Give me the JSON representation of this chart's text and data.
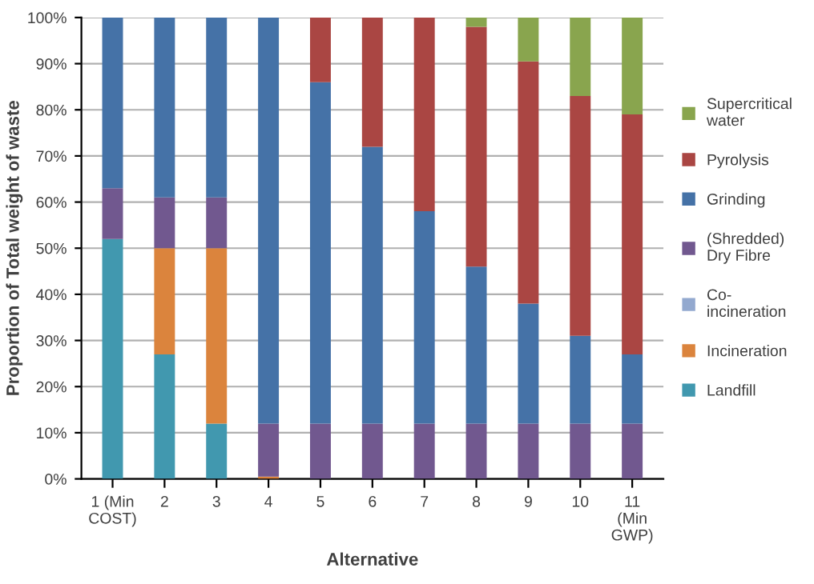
{
  "chart_data": {
    "type": "bar",
    "stacked": true,
    "xlabel": "Alternative",
    "ylabel": "Proportion of Total weight of waste",
    "categories": [
      "1 (Min\nCOST)",
      "2",
      "3",
      "4",
      "5",
      "6",
      "7",
      "8",
      "9",
      "10",
      "11\n(Min\nGWP)"
    ],
    "series": [
      {
        "name": "Landfill",
        "color": "#4198af",
        "values": [
          52,
          27,
          12,
          0,
          0,
          0,
          0,
          0,
          0,
          0,
          0
        ]
      },
      {
        "name": "Incineration",
        "color": "#db843d",
        "values": [
          0,
          23,
          38,
          0.5,
          0,
          0,
          0,
          0,
          0,
          0,
          0
        ]
      },
      {
        "name": "Co-\nincineration",
        "color": "#93a9cf",
        "values": [
          0,
          0,
          0,
          0,
          0,
          0,
          0,
          0,
          0,
          0,
          0
        ]
      },
      {
        "name": "(Shredded)\nDry Fibre",
        "color": "#71588f",
        "values": [
          11,
          11,
          11,
          11.5,
          12,
          12,
          12,
          12,
          12,
          12,
          12
        ]
      },
      {
        "name": "Grinding",
        "color": "#4572a7",
        "values": [
          37,
          39,
          39,
          88,
          74,
          60,
          46,
          34,
          26,
          19,
          15
        ]
      },
      {
        "name": "Pyrolysis",
        "color": "#aa4643",
        "values": [
          0,
          0,
          0,
          0,
          14,
          28,
          42,
          52,
          52.5,
          52,
          52
        ]
      },
      {
        "name": "Supercritical\nwater",
        "color": "#89a54e",
        "values": [
          0,
          0,
          0,
          0,
          0,
          0,
          0,
          2,
          9.5,
          17,
          21
        ]
      }
    ],
    "ylim": [
      0,
      100
    ],
    "yticks": [
      {
        "value": 0,
        "label": "0%"
      },
      {
        "value": 10,
        "label": "10%"
      },
      {
        "value": 20,
        "label": "20%"
      },
      {
        "value": 30,
        "label": "30%"
      },
      {
        "value": 40,
        "label": "40%"
      },
      {
        "value": 50,
        "label": "50%"
      },
      {
        "value": 60,
        "label": "60%"
      },
      {
        "value": 70,
        "label": "70%"
      },
      {
        "value": 80,
        "label": "80%"
      },
      {
        "value": 90,
        "label": "90%"
      },
      {
        "value": 100,
        "label": "100%"
      }
    ],
    "grid": "y",
    "legend": "right"
  }
}
